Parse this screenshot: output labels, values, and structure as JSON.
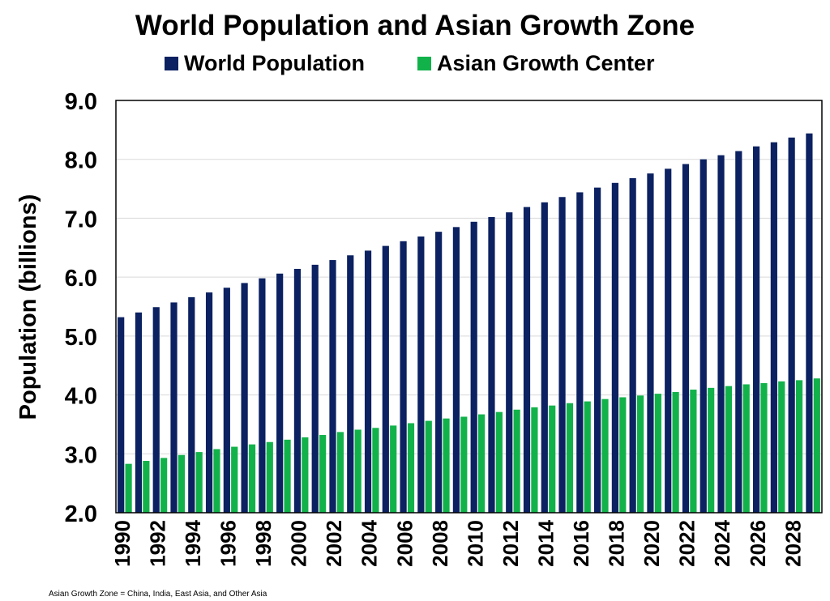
{
  "chart_data": {
    "type": "bar",
    "title": "World Population and Asian Growth Zone",
    "ylabel": "Population (billions)",
    "xlabel": "",
    "ylim": [
      2.0,
      9.0
    ],
    "yticks": [
      "2.0",
      "3.0",
      "4.0",
      "5.0",
      "6.0",
      "7.0",
      "8.0",
      "9.0"
    ],
    "legend_position": "top",
    "grid": true,
    "categories": [
      "1990",
      "1991",
      "1992",
      "1993",
      "1994",
      "1995",
      "1996",
      "1997",
      "1998",
      "1999",
      "2000",
      "2001",
      "2002",
      "2003",
      "2004",
      "2005",
      "2006",
      "2007",
      "2008",
      "2009",
      "2010",
      "2011",
      "2012",
      "2013",
      "2014",
      "2015",
      "2016",
      "2017",
      "2018",
      "2019",
      "2020",
      "2021",
      "2022",
      "2023",
      "2024",
      "2025",
      "2026",
      "2027",
      "2028",
      "2029"
    ],
    "xtick_labels": [
      "1990",
      "1992",
      "1994",
      "1996",
      "1998",
      "2000",
      "2002",
      "2004",
      "2006",
      "2008",
      "2010",
      "2012",
      "2014",
      "2016",
      "2018",
      "2020",
      "2022",
      "2024",
      "2026",
      "2028"
    ],
    "series": [
      {
        "name": "World Population",
        "color": "#0b2161",
        "values": [
          5.32,
          5.4,
          5.49,
          5.57,
          5.66,
          5.74,
          5.82,
          5.9,
          5.98,
          6.06,
          6.14,
          6.21,
          6.29,
          6.37,
          6.45,
          6.53,
          6.61,
          6.69,
          6.77,
          6.85,
          6.94,
          7.02,
          7.1,
          7.19,
          7.27,
          7.36,
          7.44,
          7.52,
          7.6,
          7.68,
          7.76,
          7.84,
          7.92,
          8.0,
          8.07,
          8.14,
          8.22,
          8.29,
          8.37,
          8.44
        ]
      },
      {
        "name": "Asian Growth Center",
        "color": "#12b24b",
        "values": [
          2.83,
          2.88,
          2.93,
          2.98,
          3.03,
          3.08,
          3.12,
          3.16,
          3.2,
          3.24,
          3.28,
          3.32,
          3.37,
          3.41,
          3.44,
          3.48,
          3.52,
          3.56,
          3.6,
          3.63,
          3.67,
          3.71,
          3.75,
          3.79,
          3.82,
          3.86,
          3.89,
          3.93,
          3.96,
          3.99,
          4.02,
          4.05,
          4.09,
          4.12,
          4.15,
          4.18,
          4.2,
          4.23,
          4.25,
          4.28
        ]
      }
    ],
    "footnote": "Asian Growth Zone = China, India, East Asia, and Other Asia"
  }
}
